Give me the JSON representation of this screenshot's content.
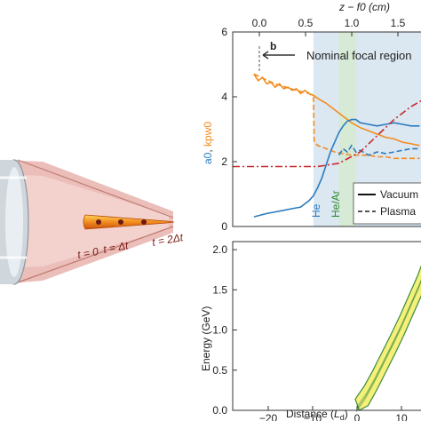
{
  "illustration": {
    "time_labels": [
      "t = 0",
      "t = Δt",
      "t = 2Δt"
    ],
    "beam_color": "#e8b3ad",
    "plasma_color": "#f28c1e"
  },
  "chart_data": [
    {
      "type": "line",
      "panel_label": "b",
      "top_axis_label": "z − f0 (cm)",
      "top_ticks": [
        "0.0",
        "0.5",
        "1.0",
        "1.5"
      ],
      "ylabel_parts": [
        "a0",
        ", ",
        "kpw0"
      ],
      "ylim": [
        0,
        6
      ],
      "yticks": [
        "0",
        "2",
        "4",
        "6"
      ],
      "annotation": "Nominal focal region",
      "region_labels": [
        "He",
        "He/Ar"
      ],
      "legend": [
        {
          "name": "Vacuum",
          "style": "solid"
        },
        {
          "name": "Plasma",
          "style": "dashed"
        }
      ],
      "colors": {
        "a0": "#2b7bbf",
        "kpw0": "#f28c1e",
        "ref": "#c8282d",
        "focal": "#dbe7f1",
        "hear": "#d5ead3"
      },
      "series": [
        {
          "key": "kpw0_vacuum",
          "x": [
            -25,
            -24,
            -23,
            -22,
            -21,
            -20,
            -19,
            -18,
            -17,
            -16,
            -15,
            -14,
            -13,
            -12,
            -11,
            -10,
            -8,
            -6,
            -4,
            -2,
            0,
            2,
            4,
            6,
            8,
            10,
            12,
            14
          ],
          "y": [
            4.7,
            4.5,
            4.6,
            4.4,
            4.45,
            4.3,
            4.4,
            4.25,
            4.3,
            4.2,
            4.25,
            4.1,
            4.2,
            4.1,
            4.05,
            3.95,
            3.8,
            3.6,
            3.4,
            3.2,
            3.05,
            2.95,
            2.85,
            2.75,
            2.7,
            2.6,
            2.55,
            2.5
          ]
        },
        {
          "key": "kpw0_plasma",
          "x": [
            -25,
            -20,
            -15,
            -12,
            -11,
            -10.8,
            -10,
            -8,
            -6,
            -4,
            -2,
            0,
            2,
            4,
            6,
            8,
            10,
            12,
            14
          ],
          "y": [
            4.7,
            4.4,
            4.2,
            4.1,
            4.0,
            2.6,
            2.5,
            2.4,
            2.3,
            2.25,
            2.2,
            2.2,
            2.2,
            2.15,
            2.15,
            2.1,
            2.1,
            2.1,
            2.1
          ]
        },
        {
          "key": "a0_vacuum",
          "x": [
            -25,
            -22,
            -20,
            -18,
            -16,
            -14,
            -12,
            -11,
            -10,
            -9,
            -8,
            -7,
            -6,
            -5,
            -4,
            -3,
            -2,
            -1,
            0,
            2,
            4,
            6,
            8,
            10,
            12,
            14
          ],
          "y": [
            0.3,
            0.4,
            0.45,
            0.5,
            0.55,
            0.6,
            0.8,
            0.95,
            1.2,
            1.5,
            1.9,
            2.3,
            2.6,
            2.9,
            3.1,
            3.25,
            3.3,
            3.3,
            3.2,
            3.15,
            3.1,
            3.15,
            3.2,
            3.15,
            3.1,
            3.1
          ]
        },
        {
          "key": "a0_plasma",
          "x": [
            -5,
            -4,
            -3,
            -2,
            -1,
            0,
            2,
            4,
            6,
            8,
            10,
            12,
            14
          ],
          "y": [
            2.2,
            2.4,
            2.3,
            2.5,
            2.3,
            2.35,
            2.2,
            2.3,
            2.25,
            2.3,
            2.35,
            2.4,
            2.4
          ]
        },
        {
          "key": "reference",
          "x": [
            -30,
            -10,
            -5,
            0,
            4,
            8,
            12,
            16
          ],
          "y": [
            1.85,
            1.85,
            1.95,
            2.3,
            2.8,
            3.3,
            3.7,
            4.0
          ]
        }
      ]
    },
    {
      "type": "area",
      "xlabel_parts": [
        "Distance (",
        "L",
        "d",
        ")"
      ],
      "ylabel": "Energy (GeV)",
      "xlim": [
        -28,
        16
      ],
      "ylim": [
        0,
        2.1
      ],
      "xticks": [
        "−20",
        "−10",
        "0",
        "10"
      ],
      "yticks": [
        "0.0",
        "0.5",
        "1.0",
        "1.5",
        "2.0"
      ],
      "x": [
        0,
        2,
        4,
        6,
        8,
        10,
        12,
        14,
        16
      ],
      "y": [
        0.02,
        0.18,
        0.38,
        0.6,
        0.82,
        1.05,
        1.3,
        1.55,
        1.85
      ],
      "band_width": 0.12,
      "colors": {
        "fill": "#f4f07a",
        "edge": "#3c8a3c"
      }
    }
  ]
}
